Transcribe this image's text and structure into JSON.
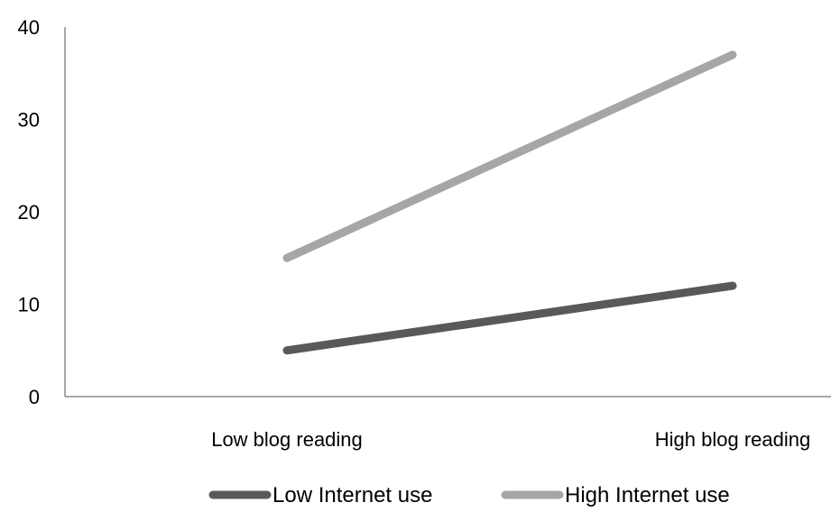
{
  "chart_data": {
    "type": "line",
    "title": "",
    "xlabel": "",
    "ylabel": "",
    "categories": [
      "Low blog reading",
      "High blog reading"
    ],
    "ylim": [
      0,
      40
    ],
    "yticks": [
      0,
      10,
      20,
      30,
      40
    ],
    "grid": false,
    "legend_position": "bottom",
    "series": [
      {
        "name": "Low Internet use",
        "values": [
          5,
          12
        ],
        "color": "#595959"
      },
      {
        "name": "High Internet use",
        "values": [
          15,
          37
        ],
        "color": "#a6a6a6"
      }
    ]
  }
}
